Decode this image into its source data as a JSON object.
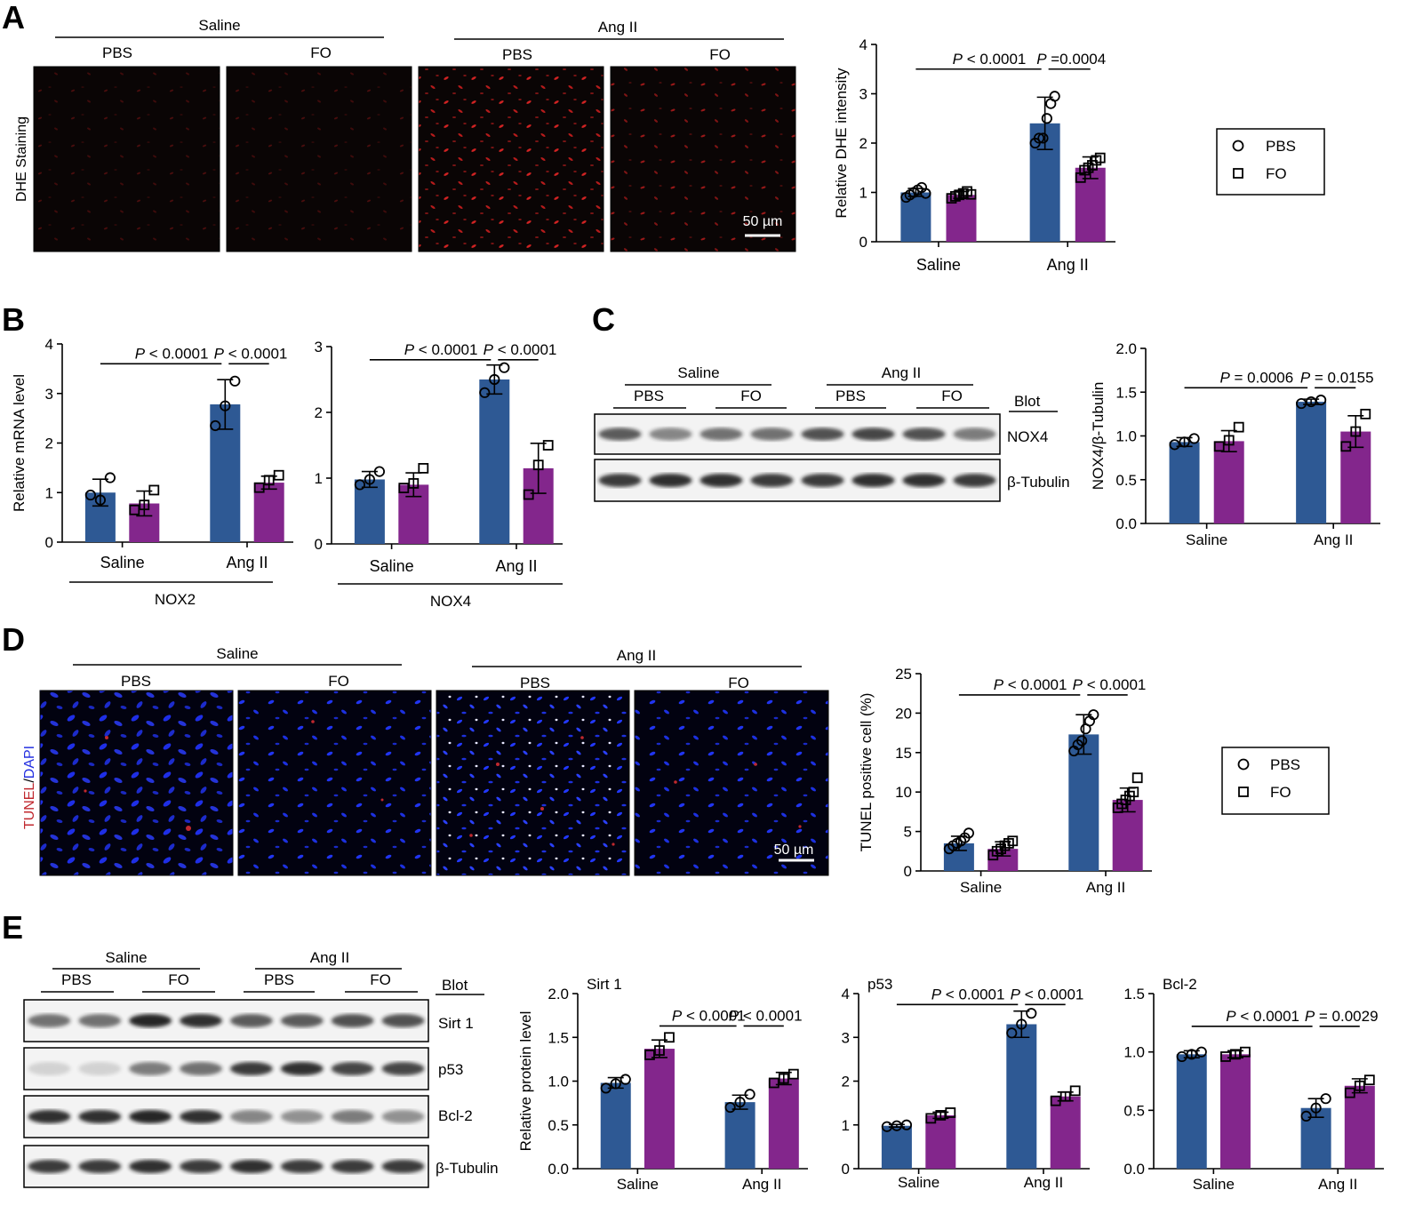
{
  "colors": {
    "pbs": "#2e5994",
    "fo": "#83268c",
    "image_bg": "#0a0505",
    "dhe_dot": "#c81e1e",
    "dapi_dot": "#1e2ee6",
    "tunel_red": "#c0282e",
    "dapi_blue": "#2430e0"
  },
  "panels": {
    "A": {
      "letter": "A",
      "groups": [
        "Saline",
        "Ang II"
      ],
      "treatments": [
        "PBS",
        "FO",
        "PBS",
        "FO"
      ],
      "side_label": "DHE Staining",
      "scale_bar": "50 µm",
      "legend": {
        "pbs": "PBS",
        "fo": "FO"
      }
    },
    "B": {
      "letter": "B",
      "group_label_1": "NOX2",
      "group_label_2": "NOX4"
    },
    "C": {
      "letter": "C",
      "groups": [
        "Saline",
        "Ang II"
      ],
      "treatments": [
        "PBS",
        "FO",
        "PBS",
        "FO"
      ],
      "blot_header": "Blot",
      "bands": [
        "NOX4",
        "β-Tubulin"
      ]
    },
    "D": {
      "letter": "D",
      "groups": [
        "Saline",
        "Ang II"
      ],
      "treatments": [
        "PBS",
        "FO",
        "PBS",
        "FO"
      ],
      "side_label_red": "TUNEL",
      "side_label_sep": "/",
      "side_label_blue": "DAPI",
      "scale_bar": "50 µm",
      "legend": {
        "pbs": "PBS",
        "fo": "FO"
      }
    },
    "E": {
      "letter": "E",
      "groups": [
        "Saline",
        "Ang II"
      ],
      "treatments": [
        "PBS",
        "FO",
        "PBS",
        "FO"
      ],
      "blot_header": "Blot",
      "bands": [
        "Sirt 1",
        "p53",
        "Bcl-2",
        "β-Tubulin"
      ]
    }
  },
  "chart_data": [
    {
      "id": "A",
      "type": "bar",
      "categories": [
        "Saline",
        "Ang II"
      ],
      "ylabel": "Relative DHE intensity",
      "ylim": [
        0,
        4
      ],
      "yticks": [
        "0",
        "1",
        "2",
        "3",
        "4"
      ],
      "series": [
        {
          "name": "PBS",
          "values": [
            1.0,
            2.4
          ],
          "err": [
            0.08,
            0.53
          ],
          "points": [
            [
              0.9,
              0.95,
              1.0,
              1.05,
              1.1,
              0.98
            ],
            [
              2.0,
              2.1,
              2.1,
              2.5,
              2.8,
              2.95
            ]
          ]
        },
        {
          "name": "FO",
          "values": [
            0.95,
            1.5
          ],
          "err": [
            0.07,
            0.22
          ],
          "points": [
            [
              0.88,
              0.92,
              0.95,
              0.98,
              1.02,
              0.96
            ],
            [
              1.3,
              1.45,
              1.5,
              1.55,
              1.65,
              1.7
            ]
          ]
        }
      ],
      "brackets": [
        {
          "left": "P < 0.0001",
          "right": "P =0.0004",
          "y": 3.5
        }
      ]
    },
    {
      "id": "B1",
      "type": "bar",
      "categories": [
        "Saline",
        "Ang II"
      ],
      "ylabel": "Relative mRNA level",
      "ylim": [
        0,
        4
      ],
      "yticks": [
        "0",
        "1",
        "2",
        "3",
        "4"
      ],
      "series": [
        {
          "name": "PBS",
          "values": [
            1.0,
            2.78
          ],
          "err": [
            0.27,
            0.5
          ],
          "points": [
            [
              0.95,
              0.85,
              1.3
            ],
            [
              2.35,
              2.75,
              3.25
            ]
          ]
        },
        {
          "name": "FO",
          "values": [
            0.78,
            1.2
          ],
          "err": [
            0.25,
            0.13
          ],
          "points": [
            [
              0.65,
              0.75,
              1.05
            ],
            [
              1.1,
              1.25,
              1.35
            ]
          ]
        }
      ],
      "brackets": [
        {
          "left": "P < 0.0001",
          "right": "P < 0.0001",
          "y": 3.6
        }
      ]
    },
    {
      "id": "B2",
      "type": "bar",
      "categories": [
        "Saline",
        "Ang II"
      ],
      "ylim": [
        0,
        3
      ],
      "yticks": [
        "0",
        "1",
        "2",
        "3"
      ],
      "series": [
        {
          "name": "PBS",
          "values": [
            0.98,
            2.5
          ],
          "err": [
            0.12,
            0.22
          ],
          "points": [
            [
              0.9,
              0.98,
              1.1
            ],
            [
              2.3,
              2.5,
              2.68
            ]
          ]
        },
        {
          "name": "FO",
          "values": [
            0.9,
            1.15
          ],
          "err": [
            0.18,
            0.38
          ],
          "points": [
            [
              0.85,
              0.92,
              1.15
            ],
            [
              0.75,
              1.2,
              1.5
            ]
          ]
        }
      ],
      "brackets": [
        {
          "left": "P < 0.0001",
          "right": "P < 0.0001",
          "y": 2.8
        }
      ]
    },
    {
      "id": "C",
      "type": "bar",
      "categories": [
        "Saline",
        "Ang II"
      ],
      "ylabel": "NOX4/β-Tubulin",
      "ylim": [
        0,
        2
      ],
      "yticks": [
        "0.0",
        "0.5",
        "1.0",
        "1.5",
        "2.0"
      ],
      "series": [
        {
          "name": "PBS",
          "values": [
            0.93,
            1.39
          ],
          "err": [
            0.05,
            0.03
          ],
          "points": [
            [
              0.9,
              0.93,
              0.97
            ],
            [
              1.37,
              1.39,
              1.41
            ]
          ]
        },
        {
          "name": "FO",
          "values": [
            0.94,
            1.05
          ],
          "err": [
            0.12,
            0.18
          ],
          "points": [
            [
              0.88,
              0.95,
              1.1
            ],
            [
              0.88,
              1.05,
              1.25
            ]
          ]
        }
      ],
      "brackets": [
        {
          "left": "P = 0.0006",
          "right": "P = 0.0155",
          "y": 1.55
        }
      ]
    },
    {
      "id": "D",
      "type": "bar",
      "categories": [
        "Saline",
        "Ang II"
      ],
      "ylabel": "TUNEL positive cell (%)",
      "ylim": [
        0,
        25
      ],
      "yticks": [
        "0",
        "5",
        "10",
        "15",
        "20",
        "25"
      ],
      "series": [
        {
          "name": "PBS",
          "values": [
            3.5,
            17.3
          ],
          "err": [
            0.9,
            2.5
          ],
          "points": [
            [
              2.8,
              3.2,
              3.5,
              3.8,
              4.2,
              4.8
            ],
            [
              15.2,
              16.0,
              16.5,
              18.0,
              19.0,
              19.8
            ]
          ]
        },
        {
          "name": "FO",
          "values": [
            2.8,
            9.0
          ],
          "err": [
            0.9,
            1.5
          ],
          "points": [
            [
              2.0,
              2.5,
              2.8,
              3.2,
              3.5,
              3.8
            ],
            [
              8.0,
              8.5,
              9.0,
              9.5,
              10.0,
              11.8
            ]
          ]
        }
      ],
      "brackets": [
        {
          "left": "P < 0.0001",
          "right": "P < 0.0001",
          "y": 22.3
        }
      ]
    },
    {
      "id": "E1",
      "type": "bar",
      "title": "Sirt 1",
      "categories": [
        "Saline",
        "Ang II"
      ],
      "ylabel": "Relative protein level",
      "ylim": [
        0,
        2
      ],
      "yticks": [
        "0.0",
        "0.5",
        "1.0",
        "1.5",
        "2.0"
      ],
      "series": [
        {
          "name": "PBS",
          "values": [
            0.98,
            0.76
          ],
          "err": [
            0.06,
            0.08
          ],
          "points": [
            [
              0.92,
              0.97,
              1.02
            ],
            [
              0.7,
              0.76,
              0.85
            ]
          ]
        },
        {
          "name": "FO",
          "values": [
            1.37,
            1.03
          ],
          "err": [
            0.1,
            0.07
          ],
          "points": [
            [
              1.3,
              1.35,
              1.5
            ],
            [
              0.98,
              1.03,
              1.08
            ]
          ]
        }
      ],
      "brackets": [
        {
          "left": "P < 0.0001",
          "right": "P < 0.0001",
          "y": 1.63,
          "from": "fo0"
        }
      ]
    },
    {
      "id": "E2",
      "type": "bar",
      "title": "p53",
      "categories": [
        "Saline",
        "Ang II"
      ],
      "ylim": [
        0,
        4
      ],
      "yticks": [
        "0",
        "1",
        "2",
        "3",
        "4"
      ],
      "series": [
        {
          "name": "PBS",
          "values": [
            0.98,
            3.3
          ],
          "err": [
            0.03,
            0.3
          ],
          "points": [
            [
              0.96,
              0.98,
              1.0
            ],
            [
              3.1,
              3.3,
              3.55
            ]
          ]
        },
        {
          "name": "FO",
          "values": [
            1.22,
            1.65
          ],
          "err": [
            0.07,
            0.1
          ],
          "points": [
            [
              1.15,
              1.22,
              1.28
            ],
            [
              1.55,
              1.65,
              1.78
            ]
          ]
        }
      ],
      "brackets": [
        {
          "left": "P < 0.0001",
          "right": "P < 0.0001",
          "y": 3.75
        }
      ]
    },
    {
      "id": "E3",
      "type": "bar",
      "title": "Bcl-2",
      "categories": [
        "Saline",
        "Ang II"
      ],
      "ylim": [
        0,
        1.5
      ],
      "yticks": [
        "0.0",
        "0.5",
        "1.0",
        "1.5"
      ],
      "series": [
        {
          "name": "PBS",
          "values": [
            0.98,
            0.52
          ],
          "err": [
            0.03,
            0.08
          ],
          "points": [
            [
              0.96,
              0.98,
              1.0
            ],
            [
              0.45,
              0.52,
              0.6
            ]
          ]
        },
        {
          "name": "FO",
          "values": [
            0.98,
            0.71
          ],
          "err": [
            0.03,
            0.06
          ],
          "points": [
            [
              0.96,
              0.98,
              1.0
            ],
            [
              0.65,
              0.71,
              0.76
            ]
          ]
        }
      ],
      "brackets": [
        {
          "left": "P < 0.0001",
          "right": "P = 0.0029",
          "y": 1.22
        }
      ]
    }
  ]
}
